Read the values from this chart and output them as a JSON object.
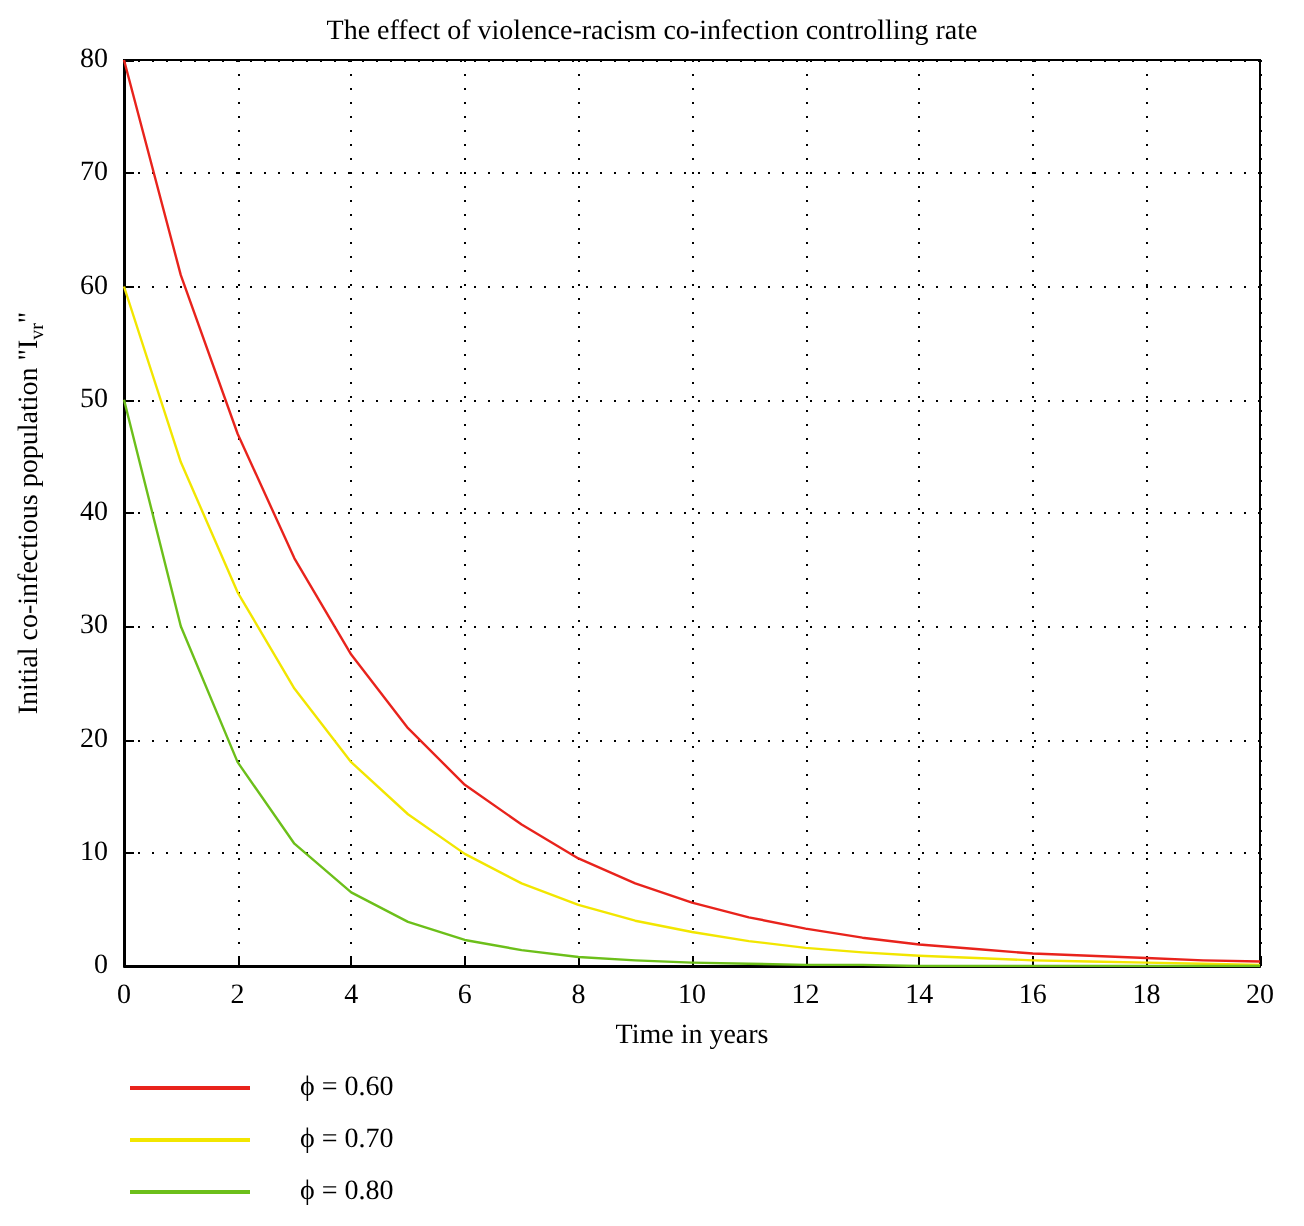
{
  "chart_data": {
    "type": "line",
    "title": "The effect of violence-racism co-infection controlling rate",
    "xlabel": "Time in years",
    "ylabel": "Initial co-infectious population \"I$_{vr}$\"",
    "x": [
      0,
      1,
      2,
      3,
      4,
      5,
      6,
      7,
      8,
      9,
      10,
      11,
      12,
      13,
      14,
      15,
      16,
      17,
      18,
      19,
      20
    ],
    "series": [
      {
        "name": "ϕ = 0.60",
        "color": "#e8231c",
        "values": [
          80,
          61,
          47,
          36,
          27.5,
          21,
          16,
          12.5,
          9.5,
          7.3,
          5.6,
          4.3,
          3.3,
          2.5,
          1.9,
          1.5,
          1.1,
          0.9,
          0.7,
          0.5,
          0.4
        ]
      },
      {
        "name": "ϕ = 0.70",
        "color": "#f2e600",
        "values": [
          60,
          44.5,
          33,
          24.5,
          18,
          13.4,
          9.9,
          7.3,
          5.4,
          4,
          3,
          2.2,
          1.6,
          1.2,
          0.9,
          0.7,
          0.5,
          0.4,
          0.3,
          0.2,
          0.1
        ]
      },
      {
        "name": "ϕ = 0.80",
        "color": "#6cbf1a",
        "values": [
          50,
          30,
          18,
          10.8,
          6.5,
          3.9,
          2.3,
          1.4,
          0.8,
          0.5,
          0.3,
          0.2,
          0.1,
          0.1,
          0,
          0,
          0,
          0,
          0,
          0,
          0
        ]
      }
    ],
    "xlim": [
      0,
      20
    ],
    "xticks": [
      0,
      2,
      4,
      6,
      8,
      10,
      12,
      14,
      16,
      18,
      20
    ],
    "ylim": [
      0,
      80
    ],
    "yticks": [
      0,
      10,
      20,
      30,
      40,
      50,
      60,
      70,
      80
    ],
    "grid": true,
    "legend": "bottom left",
    "marker": "none",
    "line_style": "solid"
  }
}
